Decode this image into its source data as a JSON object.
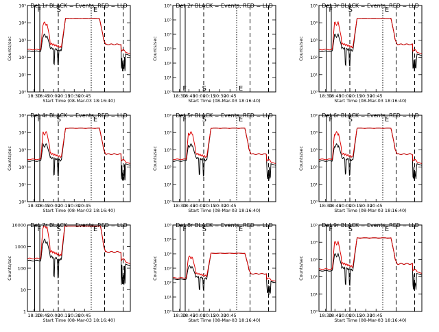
{
  "colors": {
    "events": "#000000",
    "lld": "#dd0000",
    "background": "#ffffff"
  },
  "common": {
    "xlabel": "Start Time (08-Mar-03 18:16:40)",
    "ylabel": "Counts/sec",
    "xticks": [
      "18:30",
      "18:45",
      "20:00",
      "20:15",
      "20:30",
      "20:45"
    ],
    "markers": [
      "F",
      "S",
      "E"
    ]
  },
  "chart_data": [
    {
      "type": "line",
      "title": "Det 1r BLACK = Events, RED = LLD",
      "yticks": [
        "10⁰",
        "10¹",
        "10²",
        "10³",
        "10⁴",
        "10⁵"
      ],
      "yscale": "log",
      "ylim": [
        1,
        100000
      ],
      "xlim": [
        0,
        10
      ],
      "has_data": true,
      "series": [
        {
          "name": "Events",
          "color": "black"
        },
        {
          "name": "LLD",
          "color": "red"
        }
      ]
    },
    {
      "type": "line",
      "title": "Det 2r BLACK = Events, RED = LLD",
      "yticks": [
        "10⁰",
        "10¹",
        "10²",
        "10³",
        "10⁴",
        "10⁵",
        "10⁶"
      ],
      "yscale": "log",
      "ylim": [
        1,
        1000000
      ],
      "xlim": [
        0,
        10
      ],
      "has_data": false,
      "series": []
    },
    {
      "type": "line",
      "title": "Det 3r BLACK = Events, RED = LLD",
      "yticks": [
        "10⁰",
        "10¹",
        "10²",
        "10³",
        "10⁴",
        "10⁵"
      ],
      "yscale": "log",
      "ylim": [
        1,
        100000
      ],
      "xlim": [
        0,
        10
      ],
      "has_data": true,
      "series": [
        {
          "name": "Events",
          "color": "black"
        },
        {
          "name": "LLD",
          "color": "red"
        }
      ]
    },
    {
      "type": "line",
      "title": "Det 4r BLACK = Events, RED = LLD",
      "yticks": [
        "10⁰",
        "10¹",
        "10²",
        "10³",
        "10⁴",
        "10⁵"
      ],
      "yscale": "log",
      "ylim": [
        1,
        100000
      ],
      "xlim": [
        0,
        10
      ],
      "has_data": true,
      "series": [
        {
          "name": "Events",
          "color": "black"
        },
        {
          "name": "LLD",
          "color": "red"
        }
      ]
    },
    {
      "type": "line",
      "title": "Det 5r BLACK = Events, RED = LLD",
      "yticks": [
        "10⁰",
        "10¹",
        "10²",
        "10³",
        "10⁴",
        "10⁵"
      ],
      "yscale": "log",
      "ylim": [
        1,
        100000
      ],
      "xlim": [
        0,
        10
      ],
      "has_data": true,
      "series": [
        {
          "name": "Events",
          "color": "black"
        },
        {
          "name": "LLD",
          "color": "red"
        }
      ]
    },
    {
      "type": "line",
      "title": "Det 6r BLACK = Events, RED = LLD",
      "yticks": [
        "10⁰",
        "10¹",
        "10²",
        "10³",
        "10⁴",
        "10⁵"
      ],
      "yscale": "log",
      "ylim": [
        1,
        100000
      ],
      "xlim": [
        0,
        10
      ],
      "has_data": true,
      "series": [
        {
          "name": "Events",
          "color": "black"
        },
        {
          "name": "LLD",
          "color": "red"
        }
      ]
    },
    {
      "type": "line",
      "title": "Det 7r BLACK = Events, RED = LLD",
      "yticks": [
        "1",
        "10",
        "100",
        "1000",
        "10000"
      ],
      "yscale": "log",
      "ylim": [
        1,
        10000
      ],
      "xlim": [
        0,
        10
      ],
      "has_data": true,
      "series": [
        {
          "name": "Events",
          "color": "black"
        },
        {
          "name": "LLD",
          "color": "red"
        }
      ]
    },
    {
      "type": "line",
      "title": "Det 8r BLACK = Events, RED = LLD",
      "yticks": [
        "10⁰",
        "10¹",
        "10²",
        "10³",
        "10⁴",
        "10⁵",
        "10⁶"
      ],
      "yscale": "log",
      "ylim": [
        1,
        1000000
      ],
      "xlim": [
        0,
        10
      ],
      "has_data": true,
      "series": [
        {
          "name": "Events",
          "color": "black"
        },
        {
          "name": "LLD",
          "color": "red"
        }
      ]
    },
    {
      "type": "line",
      "title": "Det 9r BLACK = Events, RED = LLD",
      "yticks": [
        "10⁰",
        "10¹",
        "10²",
        "10³",
        "10⁴",
        "10⁵"
      ],
      "yscale": "log",
      "ylim": [
        1,
        100000
      ],
      "xlim": [
        0,
        10
      ],
      "has_data": true,
      "series": [
        {
          "name": "Events",
          "color": "black"
        },
        {
          "name": "LLD",
          "color": "red"
        }
      ]
    }
  ]
}
